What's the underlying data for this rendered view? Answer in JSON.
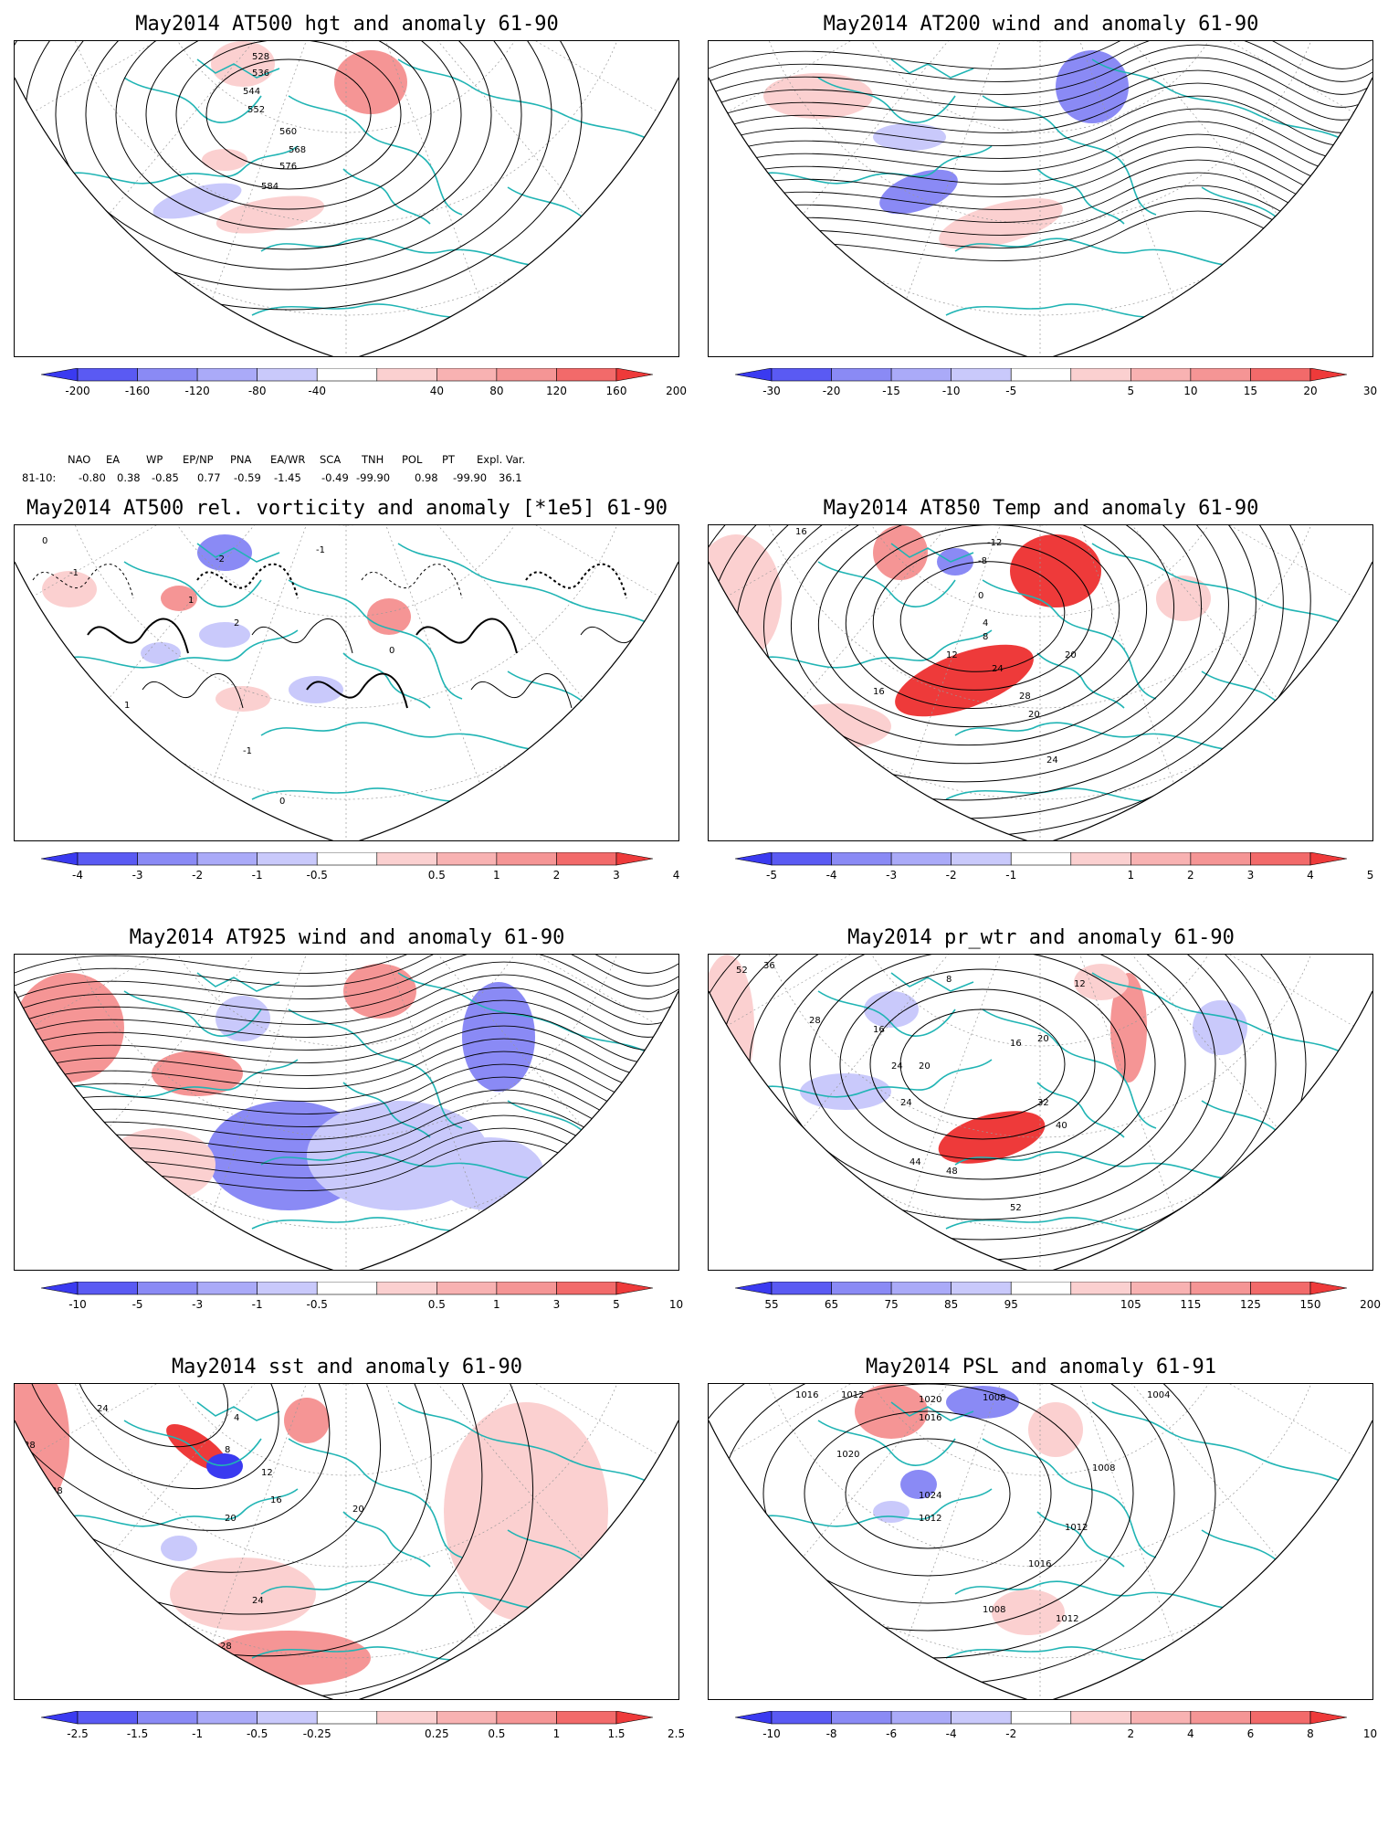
{
  "colors": {
    "coast": "#20b4b4",
    "contour": "#000000",
    "blue_dark": "#3a3af0",
    "blue_mid": "#8a8af5",
    "blue_light": "#c9c9fb",
    "red_light": "#fbd0d0",
    "red_mid": "#f59595",
    "red_dark": "#ee3a3a"
  },
  "panels": [
    {
      "id": "hgt500",
      "title": "May2014 AT500 hgt and anomaly 61-90",
      "colorbar_ticks": [
        "-200",
        "-160",
        "-120",
        "-80",
        "-40",
        "40",
        "80",
        "120",
        "160",
        "200"
      ],
      "contour_labels": [
        "528",
        "536",
        "544",
        "552",
        "560",
        "568",
        "576",
        "584"
      ],
      "teleconnections": {
        "names": [
          "NAO",
          "EA",
          "WP",
          "EP/NP",
          "PNA",
          "EA/WR",
          "SCA",
          "TNH",
          "POL",
          "PT",
          "Expl. Var."
        ],
        "row_label": "81-10:",
        "values": [
          "-0.80",
          "0.38",
          "-0.85",
          "0.77",
          "-0.59",
          "-1.45",
          "-0.49",
          "-99.90",
          "0.98",
          "-99.90",
          "36.1"
        ]
      }
    },
    {
      "id": "wind200",
      "title": "May2014 AT200 wind and anomaly 61-90",
      "colorbar_ticks": [
        "-30",
        "-20",
        "-15",
        "-10",
        "-5",
        "5",
        "10",
        "15",
        "20",
        "30"
      ],
      "contour_labels": []
    },
    {
      "id": "vort500",
      "title": "May2014 AT500 rel. vorticity and anomaly [*1e5] 61-90",
      "colorbar_ticks": [
        "-4",
        "-3",
        "-2",
        "-1",
        "-0.5",
        "0.5",
        "1",
        "2",
        "3",
        "4"
      ],
      "contour_labels": [
        "0",
        "-1",
        "1",
        "-2",
        "2",
        "-1",
        "0",
        "1",
        "-1",
        "0"
      ]
    },
    {
      "id": "temp850",
      "title": "May2014 AT850 Temp and anomaly 61-90",
      "colorbar_ticks": [
        "-5",
        "-4",
        "-3",
        "-2",
        "-1",
        "1",
        "2",
        "3",
        "4",
        "5"
      ],
      "contour_labels": [
        "16",
        "-12",
        "-8",
        "0",
        "4",
        "8",
        "12",
        "20",
        "24",
        "28",
        "16",
        "20",
        "24"
      ]
    },
    {
      "id": "wind925",
      "title": "May2014 AT925 wind and anomaly 61-90",
      "colorbar_ticks": [
        "-10",
        "-5",
        "-3",
        "-1",
        "-0.5",
        "0.5",
        "1",
        "3",
        "5",
        "10"
      ],
      "contour_labels": []
    },
    {
      "id": "prwtr",
      "title": "May2014 pr_wtr and anomaly 61-90",
      "colorbar_ticks": [
        "55",
        "65",
        "75",
        "85",
        "95",
        "105",
        "115",
        "125",
        "150",
        "200"
      ],
      "contour_labels": [
        "52",
        "36",
        "28",
        "16",
        "24",
        "20",
        "16",
        "12",
        "8",
        "24",
        "20",
        "32",
        "40",
        "44",
        "48",
        "52"
      ]
    },
    {
      "id": "sst",
      "title": "May2014 sst and anomaly 61-90",
      "colorbar_ticks": [
        "-2.5",
        "-1.5",
        "-1",
        "-0.5",
        "-0.25",
        "0.25",
        "0.5",
        "1",
        "1.5",
        "2.5"
      ],
      "contour_labels": [
        "28",
        "24",
        "28",
        "4",
        "8",
        "12",
        "16",
        "20",
        "24",
        "28",
        "28",
        "20"
      ]
    },
    {
      "id": "psl",
      "title": "May2014 PSL and anomaly 61-91",
      "colorbar_ticks": [
        "-10",
        "-8",
        "-6",
        "-4",
        "-2",
        "2",
        "4",
        "6",
        "8",
        "10"
      ],
      "contour_labels": [
        "1016",
        "1012",
        "1020",
        "1008",
        "1016",
        "1024",
        "1012",
        "1008",
        "1020",
        "1012",
        "1016",
        "1008",
        "1012",
        "1004"
      ]
    }
  ]
}
